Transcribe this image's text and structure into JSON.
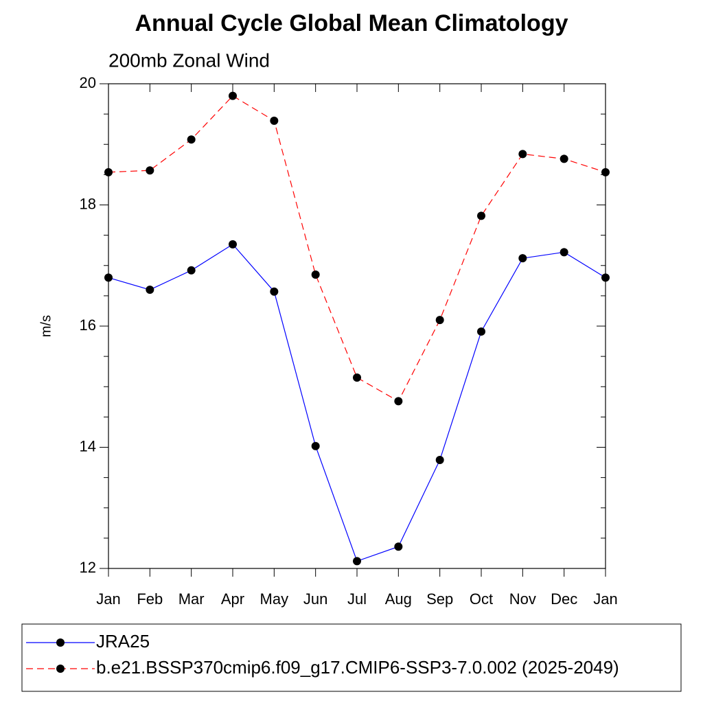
{
  "chart_data": {
    "type": "line",
    "title": "Annual Cycle Global Mean Climatology",
    "subtitle": "200mb Zonal Wind",
    "y_label": "m/s",
    "categories": [
      "Jan",
      "Feb",
      "Mar",
      "Apr",
      "May",
      "Jun",
      "Jul",
      "Aug",
      "Sep",
      "Oct",
      "Nov",
      "Dec",
      "Jan"
    ],
    "series": [
      {
        "name": "JRA25",
        "color": "#0000ff",
        "dash": "solid",
        "values": [
          16.8,
          16.6,
          16.92,
          17.35,
          16.57,
          14.02,
          12.12,
          12.36,
          13.79,
          15.91,
          17.12,
          17.22,
          16.8
        ]
      },
      {
        "name": "b.e21.BSSP370cmip6.f09_g17.CMIP6-SSP3-7.0.002 (2025-2049)",
        "color": "#ff0000",
        "dash": "dashed",
        "values": [
          18.54,
          18.57,
          19.08,
          19.8,
          19.39,
          16.85,
          15.15,
          14.76,
          16.1,
          17.82,
          18.84,
          18.76,
          18.54
        ]
      }
    ],
    "ylim": [
      12,
      20
    ],
    "yticks": [
      12,
      14,
      16,
      18,
      20
    ],
    "yminorticks": [
      12.5,
      13,
      13.5,
      14.5,
      15,
      15.5,
      16.5,
      17,
      17.5,
      18.5,
      19,
      19.5
    ],
    "legend": "bottom"
  }
}
